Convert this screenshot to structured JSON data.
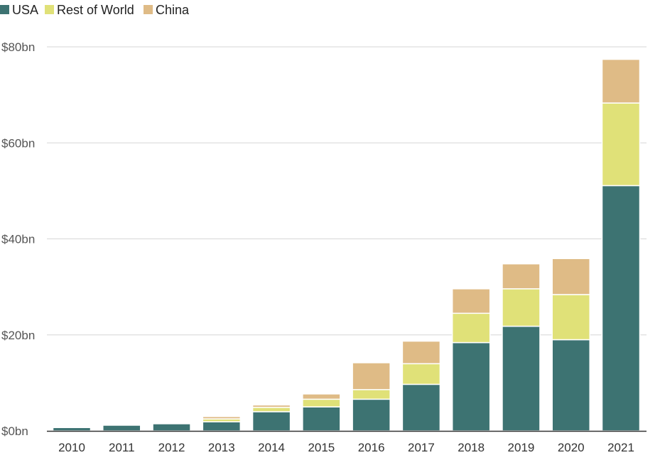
{
  "colors": {
    "usa": "#3d7372",
    "rest_of_world": "#e0e178",
    "china": "#dfbb86",
    "grid": "#d6d6d6",
    "axis": "#333333"
  },
  "legend": {
    "items": [
      {
        "label": "USA",
        "color": "#3d7372"
      },
      {
        "label": "Rest of World",
        "color": "#e0e178"
      },
      {
        "label": "China",
        "color": "#dfbb86"
      }
    ]
  },
  "chart_data": {
    "type": "bar",
    "stacked": true,
    "title": "",
    "xlabel": "",
    "ylabel": "",
    "categories": [
      "2010",
      "2011",
      "2012",
      "2013",
      "2014",
      "2015",
      "2016",
      "2017",
      "2018",
      "2019",
      "2020",
      "2021"
    ],
    "series": [
      {
        "name": "USA",
        "values": [
          0.7,
          1.2,
          1.5,
          1.9,
          4.0,
          5.0,
          6.6,
          9.7,
          18.4,
          21.8,
          19.0,
          51.1
        ]
      },
      {
        "name": "Rest of World",
        "values": [
          0.05,
          0.1,
          0.15,
          0.6,
          0.9,
          1.6,
          2.0,
          4.3,
          6.1,
          7.8,
          9.4,
          17.2
        ]
      },
      {
        "name": "China",
        "values": [
          0.05,
          0.1,
          0.15,
          0.5,
          0.5,
          1.1,
          5.6,
          4.7,
          5.1,
          5.2,
          7.5,
          9.1
        ]
      }
    ],
    "ylim": [
      0,
      80
    ],
    "yticks": [
      0,
      20,
      40,
      60,
      80
    ],
    "ytick_labels": [
      "$0bn",
      "$20bn",
      "$40bn",
      "$60bn",
      "$80bn"
    ],
    "grid": true,
    "legend_position": "top-left"
  }
}
